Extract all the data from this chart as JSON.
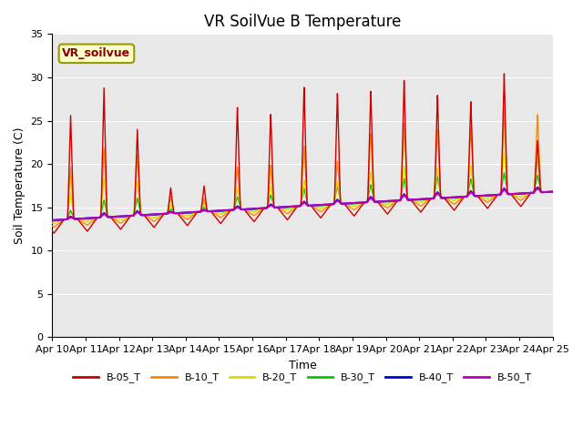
{
  "title": "VR SoilVue B Temperature",
  "ylabel": "Soil Temperature (C)",
  "xlabel": "Time",
  "ylim": [
    0,
    35
  ],
  "yticks": [
    0,
    5,
    10,
    15,
    20,
    25,
    30,
    35
  ],
  "date_labels": [
    "Apr 10",
    "Apr 11",
    "Apr 12",
    "Apr 13",
    "Apr 14",
    "Apr 15",
    "Apr 16",
    "Apr 17",
    "Apr 18",
    "Apr 19",
    "Apr 20",
    "Apr 21",
    "Apr 22",
    "Apr 23",
    "Apr 24",
    "Apr 25"
  ],
  "series_colors": {
    "B-05_T": "#cc0000",
    "B-10_T": "#ff8800",
    "B-20_T": "#dddd00",
    "B-30_T": "#00cc00",
    "B-40_T": "#0000dd",
    "B-50_T": "#bb00bb"
  },
  "annotation_label": "VR_soilvue",
  "annotation_bg": "#ffffcc",
  "annotation_border": "#999900",
  "plot_bg": "#e8e8e8",
  "fig_bg": "#ffffff",
  "title_fontsize": 12,
  "axis_fontsize": 9,
  "tick_fontsize": 8
}
